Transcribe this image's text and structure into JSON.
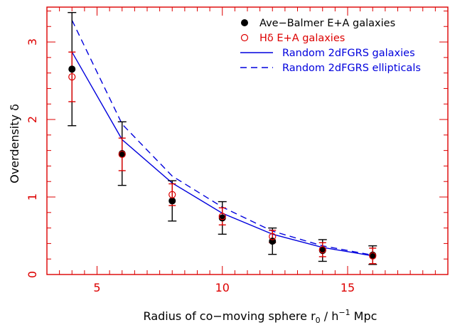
{
  "chart_data": {
    "type": "scatter",
    "xlabel": "Radius of co−moving sphere r",
    "xlabel_sub": "0",
    "xlabel_mid": " / h",
    "xlabel_sup": "−1",
    "xlabel_end": " Mpc",
    "ylabel": "Overdensity δ",
    "xlim": [
      3,
      19
    ],
    "ylim": [
      0,
      3.45
    ],
    "xticks": [
      5,
      10,
      15
    ],
    "yticks": [
      0,
      1,
      2,
      3
    ],
    "axis_color": "#dd0000",
    "legend_position": "top-right",
    "series": [
      {
        "name": "Ave−Balmer E+A galaxies",
        "marker": "filled-circle",
        "color": "#000000",
        "x": [
          4,
          6,
          8,
          10,
          12,
          14,
          16
        ],
        "y": [
          2.65,
          1.56,
          0.95,
          0.73,
          0.43,
          0.31,
          0.25
        ],
        "err_low": [
          0.73,
          0.41,
          0.26,
          0.21,
          0.17,
          0.14,
          0.12
        ],
        "err_high": [
          0.73,
          0.41,
          0.26,
          0.21,
          0.17,
          0.14,
          0.12
        ]
      },
      {
        "name": "Hδ E+A galaxies",
        "marker": "open-circle",
        "color": "#dd0000",
        "x": [
          4,
          6,
          8,
          10,
          12,
          14,
          16
        ],
        "y": [
          2.55,
          1.55,
          1.03,
          0.75,
          0.49,
          0.32,
          0.24
        ],
        "err_low": [
          0.32,
          0.21,
          0.14,
          0.11,
          0.08,
          0.09,
          0.1
        ],
        "err_high": [
          0.32,
          0.21,
          0.14,
          0.11,
          0.08,
          0.09,
          0.1
        ]
      },
      {
        "name": "Random 2dFGRS galaxies",
        "line": "solid",
        "color": "#0000dd",
        "x": [
          4,
          6,
          8,
          10,
          12,
          14,
          16
        ],
        "y": [
          2.87,
          1.74,
          1.18,
          0.79,
          0.52,
          0.35,
          0.24
        ]
      },
      {
        "name": "Random 2dFGRS ellipticals",
        "line": "dashed",
        "color": "#0000dd",
        "x": [
          4,
          6,
          8,
          10,
          12,
          14,
          16
        ],
        "y": [
          3.28,
          1.94,
          1.27,
          0.87,
          0.56,
          0.37,
          0.25
        ]
      }
    ]
  }
}
